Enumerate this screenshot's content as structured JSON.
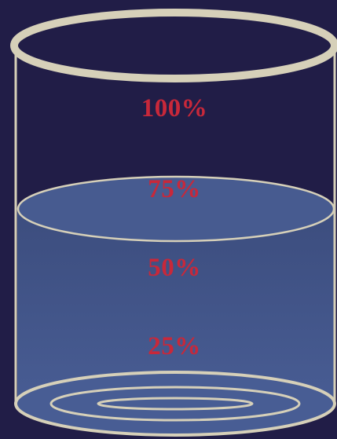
{
  "labels": {
    "p100": "100%",
    "p75": "75%",
    "p50": "50%",
    "p25": "25%"
  },
  "fill_level_percent": 75,
  "colors": {
    "background": "#211d47",
    "rim": "#d6d0b9",
    "liquid_top": "#3c4d7e",
    "liquid_bottom": "#4a5f97",
    "liquid_surface": "#475b90",
    "label": "#c8283a"
  }
}
